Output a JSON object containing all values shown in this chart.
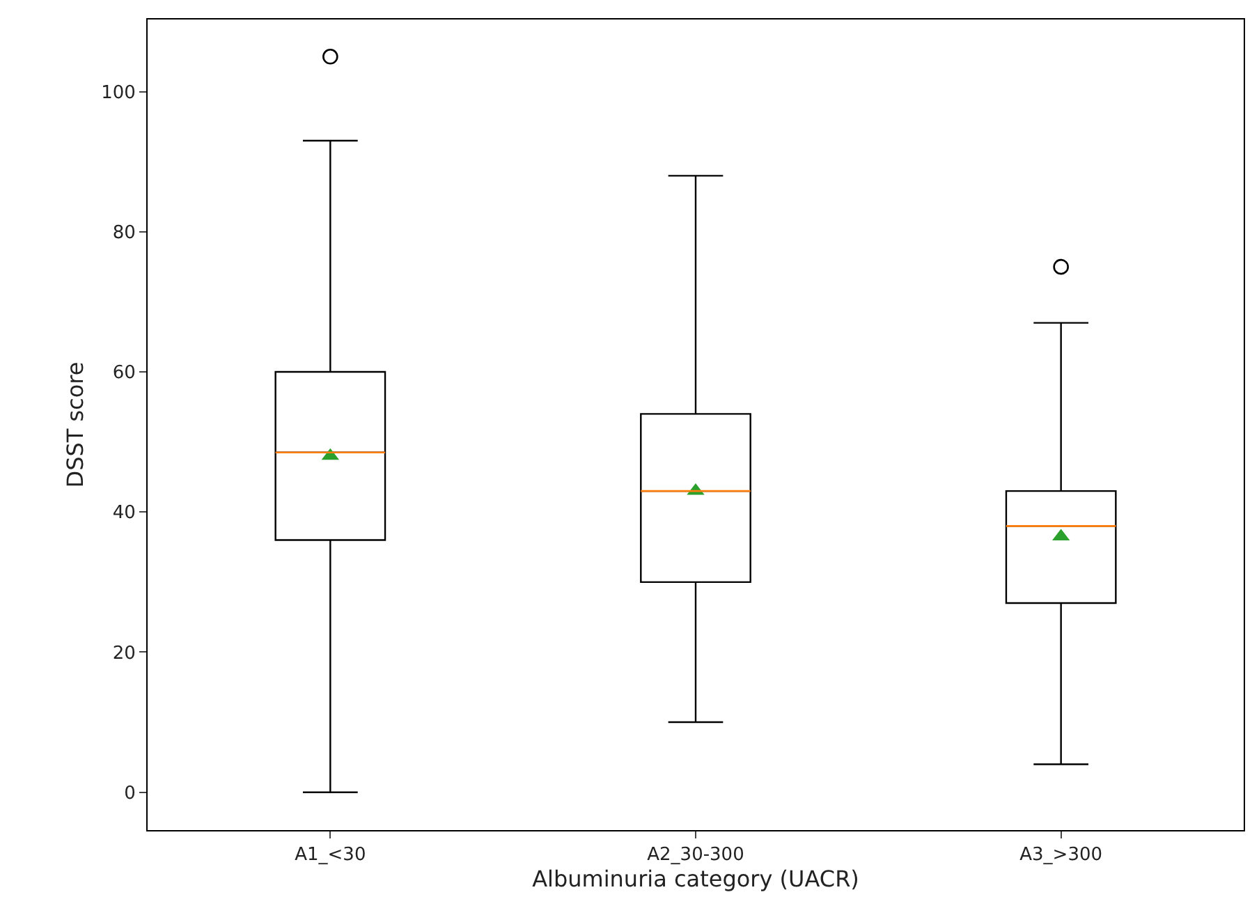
{
  "chart_data": {
    "type": "box",
    "categories": [
      "A1_<30",
      "A2_30-300",
      "A3_>300"
    ],
    "xlabel": "Albuminuria category (UACR)",
    "ylabel": "DSST score",
    "boxes": [
      {
        "low": 0,
        "q1": 36,
        "median": 48.5,
        "q3": 60,
        "high": 93,
        "mean": 48,
        "outliers": [
          105
        ]
      },
      {
        "low": 10,
        "q1": 30,
        "median": 43,
        "q3": 54,
        "high": 88,
        "mean": 43
      },
      {
        "low": 4,
        "q1": 27,
        "median": 38,
        "q3": 43,
        "high": 67,
        "mean": 36.5,
        "outliers": [
          75
        ]
      }
    ],
    "ylim": [
      -5.4,
      110.3
    ],
    "yticks": [
      0,
      20,
      40,
      60,
      80,
      100
    ],
    "marker": "circle"
  }
}
